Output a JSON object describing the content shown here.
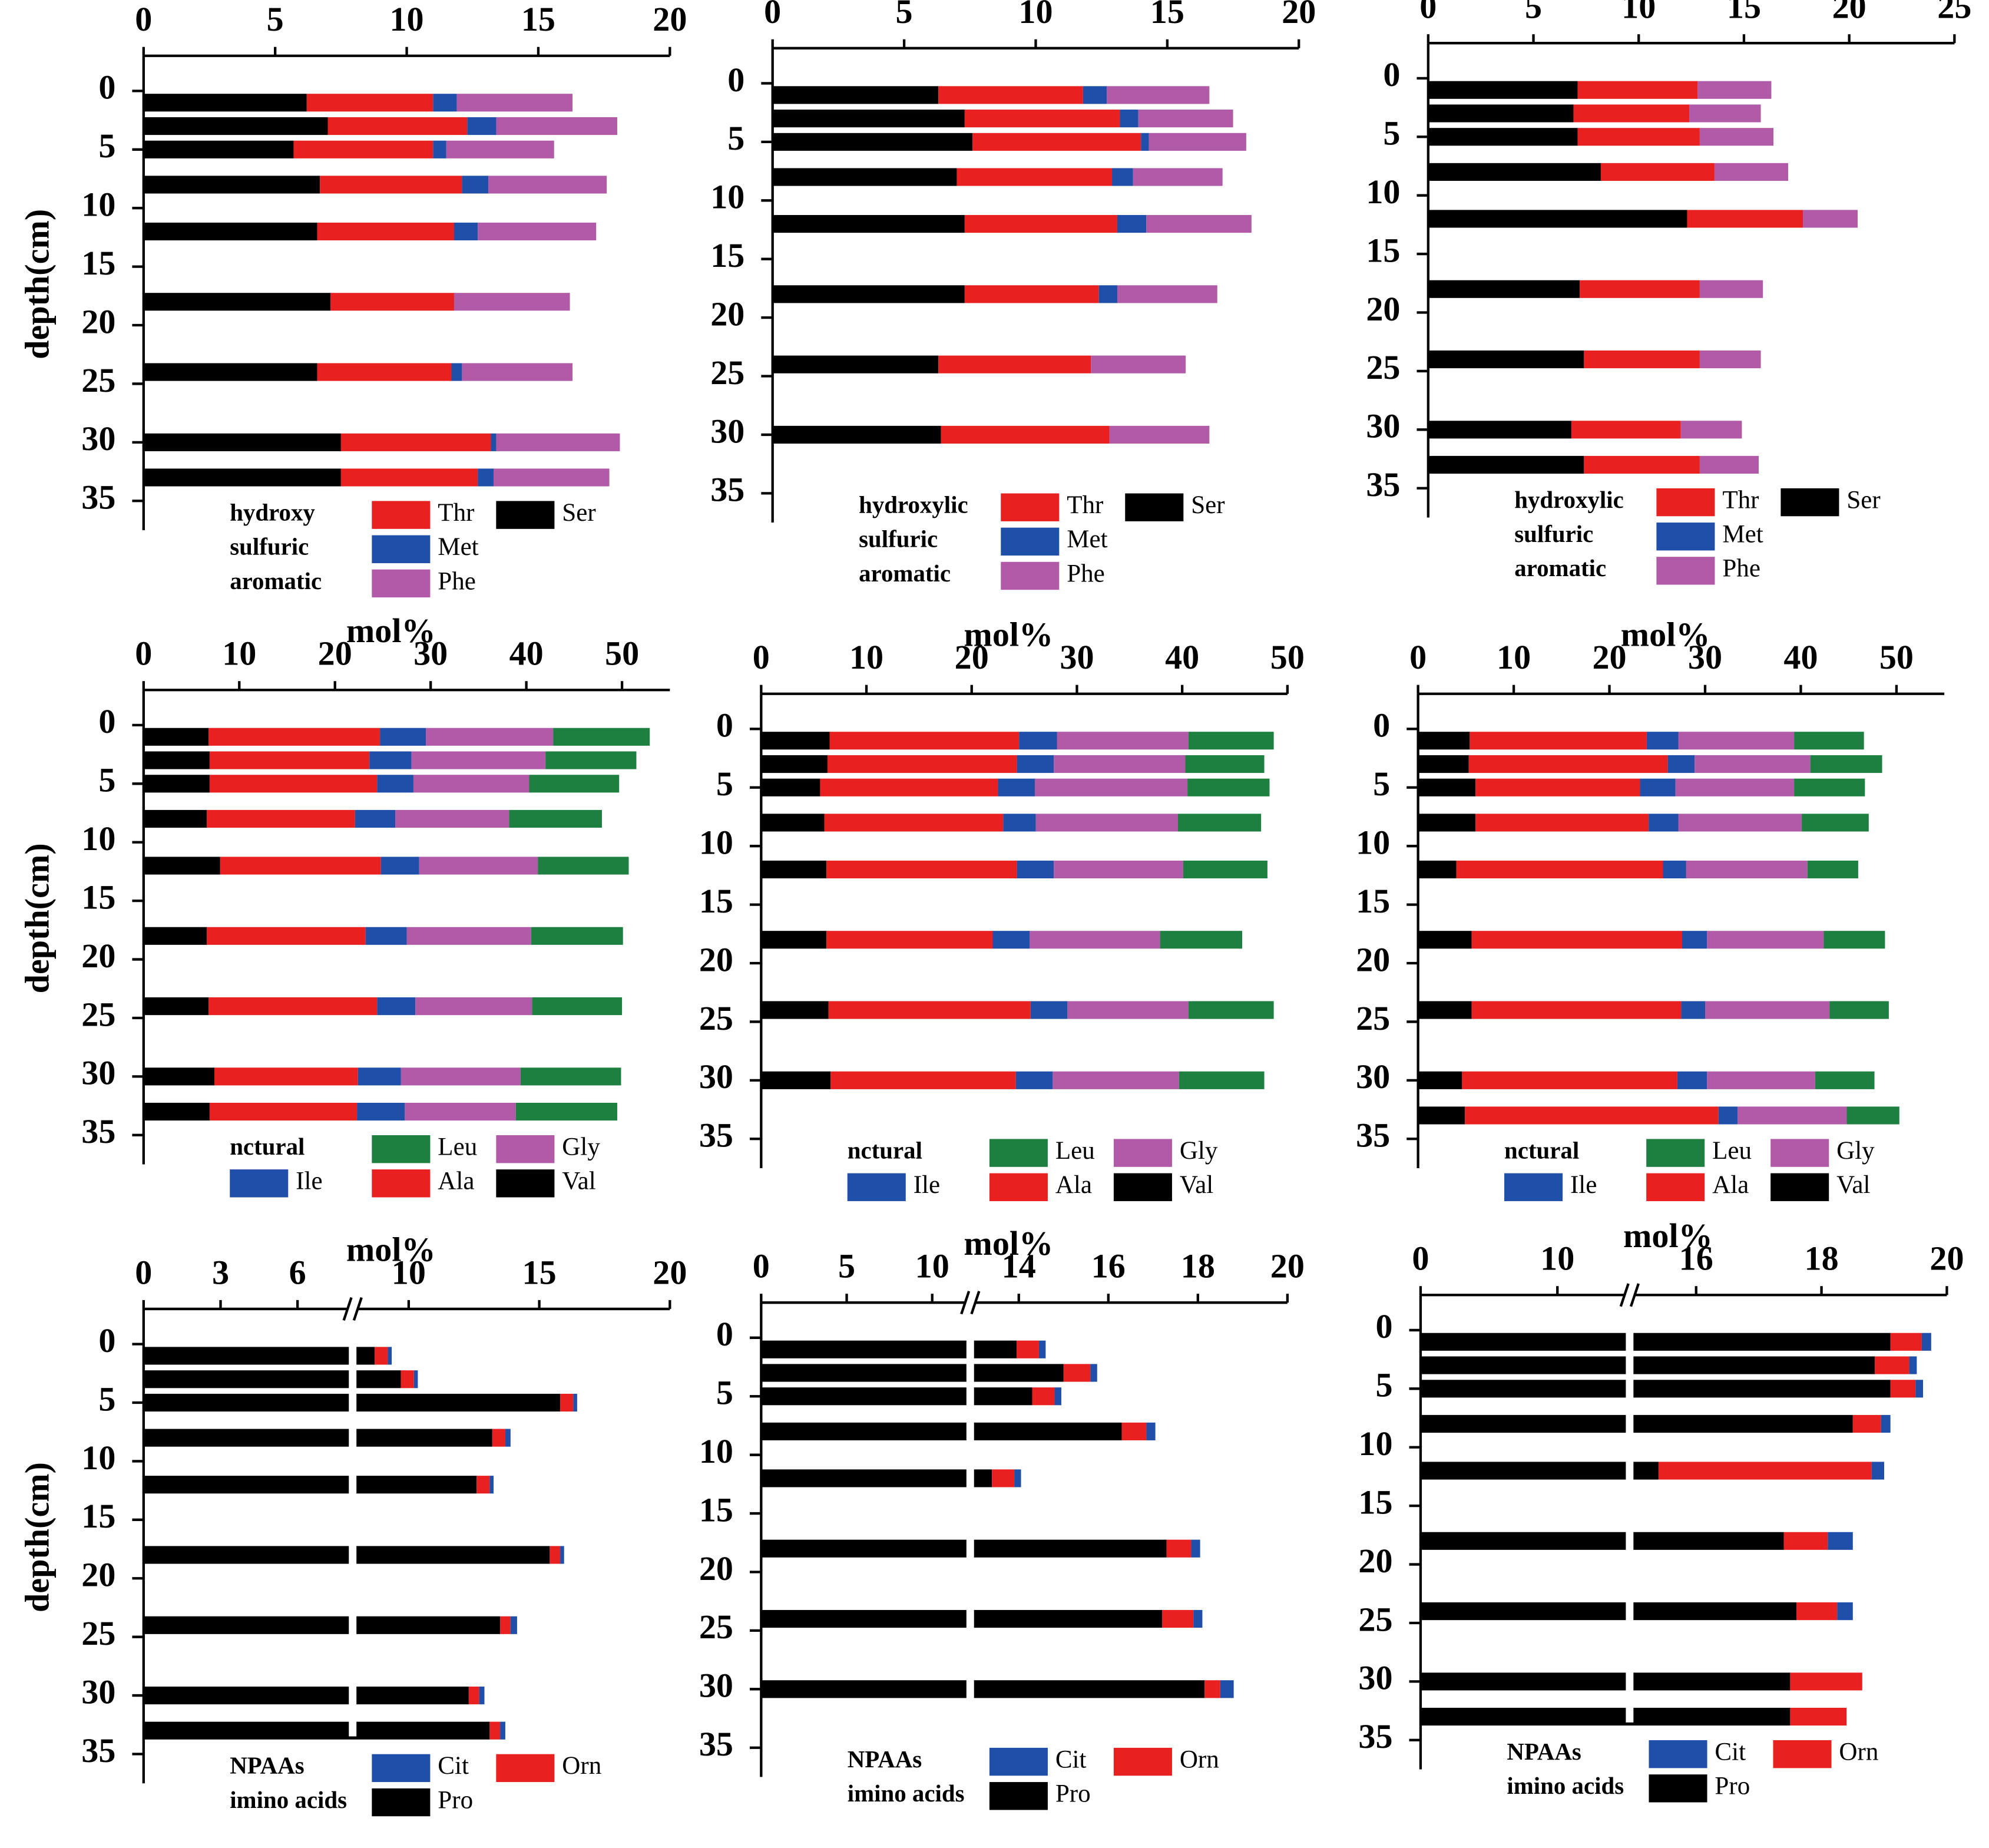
{
  "chart_data": [
    {
      "type": "bar",
      "stacked": true,
      "orientation": "horizontal",
      "xlim": [
        0,
        20
      ],
      "xticks": [
        0,
        5,
        10,
        15,
        20
      ],
      "ylim": [
        -3,
        37.5
      ],
      "yticks": [
        0,
        5,
        10,
        15,
        20,
        25,
        30,
        35
      ],
      "ylabel": "depth(cm)",
      "y": [
        1,
        3,
        5,
        8,
        12,
        18,
        24,
        30,
        33
      ],
      "legend_groups": [
        "hydroxy",
        "sulfuric",
        "aromatic"
      ],
      "series": [
        {
          "name": "Ser",
          "group": "hydroxy",
          "color": "#000000",
          "values": [
            6.2,
            7.0,
            5.7,
            6.7,
            6.6,
            7.1,
            6.6,
            7.5,
            7.5
          ]
        },
        {
          "name": "Thr",
          "group": "hydroxy",
          "color": "#e8201f",
          "values": [
            4.8,
            5.3,
            5.3,
            5.4,
            5.2,
            4.7,
            5.1,
            5.7,
            5.2
          ]
        },
        {
          "name": "Met",
          "group": "sulfuric",
          "color": "#1f4fa8",
          "values": [
            0.9,
            1.1,
            0.5,
            1.0,
            0.9,
            0,
            0.4,
            0.2,
            0.6
          ]
        },
        {
          "name": "Phe",
          "group": "aromatic",
          "color": "#b05aa8",
          "values": [
            4.4,
            4.6,
            4.1,
            4.5,
            4.5,
            4.4,
            4.2,
            4.7,
            4.4
          ]
        }
      ]
    },
    {
      "type": "bar",
      "stacked": true,
      "orientation": "horizontal",
      "xlim": [
        0,
        20
      ],
      "xticks": [
        0,
        5,
        10,
        15,
        20
      ],
      "ylim": [
        -3,
        37.5
      ],
      "yticks": [
        0,
        5,
        10,
        15,
        20,
        25,
        30,
        35
      ],
      "y": [
        1,
        3,
        5,
        8,
        12,
        18,
        24,
        30
      ],
      "legend_groups": [
        "hydroxylic",
        "sulfuric",
        "aromatic"
      ],
      "series": [
        {
          "name": "Ser",
          "group": "hydroxylic",
          "color": "#000000",
          "values": [
            6.3,
            7.3,
            7.6,
            7.0,
            7.3,
            7.3,
            6.3,
            6.4
          ]
        },
        {
          "name": "Thr",
          "group": "hydroxylic",
          "color": "#e8201f",
          "values": [
            5.5,
            5.9,
            6.4,
            5.9,
            5.8,
            5.1,
            5.8,
            6.4
          ]
        },
        {
          "name": "Met",
          "group": "sulfuric",
          "color": "#1f4fa8",
          "values": [
            0.9,
            0.7,
            0.3,
            0.8,
            1.1,
            0.7,
            0,
            0
          ]
        },
        {
          "name": "Phe",
          "group": "aromatic",
          "color": "#b05aa8",
          "values": [
            3.9,
            3.6,
            3.7,
            3.4,
            4.0,
            3.8,
            3.6,
            3.8
          ]
        }
      ]
    },
    {
      "type": "bar",
      "stacked": true,
      "orientation": "horizontal",
      "xlim": [
        0,
        25
      ],
      "xticks": [
        0,
        5,
        10,
        15,
        20,
        25
      ],
      "ylim": [
        -3,
        37.5
      ],
      "yticks": [
        0,
        5,
        10,
        15,
        20,
        25,
        30,
        35
      ],
      "y": [
        1,
        3,
        5,
        8,
        12,
        18,
        24,
        30,
        33
      ],
      "legend_groups": [
        "hydroxylic",
        "sulfuric",
        "aromatic"
      ],
      "series": [
        {
          "name": "Ser",
          "group": "hydroxylic",
          "color": "#000000",
          "values": [
            7.1,
            6.9,
            7.1,
            8.2,
            12.3,
            7.2,
            7.4,
            6.8,
            7.4
          ]
        },
        {
          "name": "Thr",
          "group": "hydroxylic",
          "color": "#e8201f",
          "values": [
            5.7,
            5.5,
            5.8,
            5.4,
            5.5,
            5.7,
            5.5,
            5.2,
            5.5
          ]
        },
        {
          "name": "Met",
          "group": "sulfuric",
          "color": "#1f4fa8",
          "values": [
            0,
            0,
            0,
            0,
            0,
            0,
            0,
            0,
            0
          ]
        },
        {
          "name": "Phe",
          "group": "aromatic",
          "color": "#b05aa8",
          "values": [
            3.5,
            3.4,
            3.5,
            3.5,
            2.6,
            3.0,
            2.9,
            2.9,
            2.8
          ]
        }
      ]
    },
    {
      "type": "bar",
      "stacked": true,
      "orientation": "horizontal",
      "xlabel": "mol%",
      "xlim": [
        0,
        55
      ],
      "xticks": [
        0,
        10,
        20,
        30,
        40,
        50
      ],
      "ylim": [
        -3,
        37.5
      ],
      "yticks": [
        0,
        5,
        10,
        15,
        20,
        25,
        30,
        35
      ],
      "ylabel": "depth(cm)",
      "y": [
        1,
        3,
        5,
        8,
        12,
        18,
        24,
        30,
        33
      ],
      "legend_groups": [
        "nctural"
      ],
      "series": [
        {
          "name": "Val",
          "group": "nctural",
          "color": "#000000",
          "values": [
            6.8,
            6.9,
            6.9,
            6.6,
            8.0,
            6.6,
            6.8,
            7.4,
            6.9
          ]
        },
        {
          "name": "Ala",
          "group": "nctural",
          "color": "#e8201f",
          "values": [
            17.9,
            16.7,
            17.5,
            15.5,
            16.8,
            16.6,
            17.6,
            15.0,
            15.4
          ]
        },
        {
          "name": "Ile",
          "group": "nctural",
          "color": "#1f4fa8",
          "values": [
            4.8,
            4.4,
            3.8,
            4.2,
            4.0,
            4.3,
            4.0,
            4.5,
            5.0
          ]
        },
        {
          "name": "Gly",
          "group": "nctural",
          "color": "#b05aa8",
          "values": [
            13.3,
            14.0,
            12.1,
            11.9,
            12.4,
            13.0,
            12.2,
            12.5,
            11.6
          ]
        },
        {
          "name": "Leu",
          "group": "nctural",
          "color": "#1e8040",
          "values": [
            10.1,
            9.5,
            9.4,
            9.7,
            9.5,
            9.6,
            9.4,
            10.5,
            10.6
          ]
        }
      ]
    },
    {
      "type": "bar",
      "stacked": true,
      "orientation": "horizontal",
      "xlabel": "mol%",
      "xlim": [
        0,
        50
      ],
      "xticks": [
        0,
        10,
        20,
        30,
        40,
        50
      ],
      "ylim": [
        -3,
        37.5
      ],
      "yticks": [
        0,
        5,
        10,
        15,
        20,
        25,
        30,
        35
      ],
      "y": [
        1,
        3,
        5,
        8,
        12,
        18,
        24,
        30
      ],
      "legend_groups": [
        "nctural"
      ],
      "series": [
        {
          "name": "Val",
          "group": "nctural",
          "color": "#000000",
          "values": [
            6.5,
            6.3,
            5.6,
            6.0,
            6.2,
            6.2,
            6.4,
            6.6
          ]
        },
        {
          "name": "Ala",
          "group": "nctural",
          "color": "#e8201f",
          "values": [
            18.0,
            18.0,
            16.9,
            17.0,
            18.1,
            15.8,
            19.2,
            17.6
          ]
        },
        {
          "name": "Ile",
          "group": "nctural",
          "color": "#1f4fa8",
          "values": [
            3.6,
            3.5,
            3.5,
            3.1,
            3.5,
            3.5,
            3.5,
            3.5
          ]
        },
        {
          "name": "Gly",
          "group": "nctural",
          "color": "#b05aa8",
          "values": [
            12.5,
            12.5,
            14.5,
            13.5,
            12.3,
            12.4,
            11.5,
            12.0
          ]
        },
        {
          "name": "Leu",
          "group": "nctural",
          "color": "#1e8040",
          "values": [
            8.1,
            7.5,
            7.8,
            7.9,
            8.0,
            7.8,
            8.1,
            8.1
          ]
        }
      ]
    },
    {
      "type": "bar",
      "stacked": true,
      "orientation": "horizontal",
      "xlabel": "mol%",
      "xlim": [
        0,
        55
      ],
      "xticks": [
        0,
        10,
        20,
        30,
        40,
        50
      ],
      "ylim": [
        -3,
        37.5
      ],
      "yticks": [
        0,
        5,
        10,
        15,
        20,
        25,
        30,
        35
      ],
      "y": [
        1,
        3,
        5,
        8,
        12,
        18,
        24,
        30,
        33
      ],
      "legend_groups": [
        "nctural"
      ],
      "series": [
        {
          "name": "Val",
          "group": "nctural",
          "color": "#000000",
          "values": [
            5.4,
            5.3,
            6.0,
            6.0,
            4.0,
            5.6,
            5.6,
            4.6,
            4.9
          ]
        },
        {
          "name": "Ala",
          "group": "nctural",
          "color": "#e8201f",
          "values": [
            18.5,
            20.8,
            17.2,
            18.1,
            21.6,
            22.0,
            21.9,
            22.5,
            26.5
          ]
        },
        {
          "name": "Ile",
          "group": "nctural",
          "color": "#1f4fa8",
          "values": [
            3.3,
            2.8,
            3.7,
            3.1,
            2.4,
            2.6,
            2.5,
            3.1,
            2.0
          ]
        },
        {
          "name": "Gly",
          "group": "nctural",
          "color": "#b05aa8",
          "values": [
            12.1,
            12.1,
            12.4,
            12.9,
            12.7,
            12.2,
            13.0,
            11.3,
            11.4
          ]
        },
        {
          "name": "Leu",
          "group": "nctural",
          "color": "#1e8040",
          "values": [
            7.3,
            7.5,
            7.4,
            7.0,
            5.3,
            6.4,
            6.2,
            6.2,
            5.5
          ]
        }
      ]
    },
    {
      "type": "bar",
      "stacked": true,
      "orientation": "horizontal",
      "xlabel": "mol%",
      "xlim": [
        0,
        20
      ],
      "xbreak": [
        8,
        8
      ],
      "xticks": [
        0,
        3,
        6,
        10,
        15,
        20
      ],
      "ylim": [
        -3,
        37.5
      ],
      "yticks": [
        0,
        5,
        10,
        15,
        20,
        25,
        30,
        35
      ],
      "ylabel": "depth(cm)",
      "y": [
        1,
        3,
        5,
        8,
        12,
        18,
        24,
        30,
        33
      ],
      "legend_groups": [
        "NPAAs",
        "imino acids"
      ],
      "series": [
        {
          "name": "Pro",
          "group": "imino acids",
          "color": "#000000",
          "values": [
            8.7,
            9.7,
            15.8,
            13.2,
            12.6,
            15.4,
            13.5,
            12.3,
            13.1
          ]
        },
        {
          "name": "Orn",
          "group": "NPAAs",
          "color": "#e8201f",
          "values": [
            0.5,
            0.5,
            0.5,
            0.5,
            0.5,
            0.4,
            0.4,
            0.4,
            0.4
          ]
        },
        {
          "name": "Cit",
          "group": "NPAAs",
          "color": "#1f4fa8",
          "values": [
            0.15,
            0.15,
            0.15,
            0.2,
            0.15,
            0.15,
            0.25,
            0.2,
            0.2
          ]
        }
      ]
    },
    {
      "type": "bar",
      "stacked": true,
      "orientation": "horizontal",
      "xlabel": "mol%",
      "xlim": [
        0,
        20
      ],
      "xbreak": [
        12,
        13
      ],
      "xticks": [
        0,
        5,
        10,
        14,
        16,
        18,
        20
      ],
      "ylim": [
        -3,
        37.5
      ],
      "yticks": [
        0,
        5,
        10,
        15,
        20,
        25,
        30,
        35
      ],
      "y": [
        1,
        3,
        5,
        8,
        12,
        18,
        24,
        30
      ],
      "legend_groups": [
        "NPAAs",
        "imino acids"
      ],
      "series": [
        {
          "name": "Pro",
          "group": "imino acids",
          "color": "#000000",
          "values": [
            13.95,
            15.0,
            14.3,
            16.3,
            13.4,
            17.3,
            17.2,
            18.15
          ]
        },
        {
          "name": "Orn",
          "group": "NPAAs",
          "color": "#e8201f",
          "values": [
            0.5,
            0.6,
            0.5,
            0.55,
            0.5,
            0.55,
            0.7,
            0.35
          ]
        },
        {
          "name": "Cit",
          "group": "NPAAs",
          "color": "#1f4fa8",
          "values": [
            0.15,
            0.15,
            0.15,
            0.2,
            0.15,
            0.2,
            0.2,
            0.3
          ]
        }
      ]
    },
    {
      "type": "bar",
      "stacked": true,
      "orientation": "horizontal",
      "xlabel": "mol%",
      "xlim": [
        0,
        20
      ],
      "xbreak": [
        15,
        15
      ],
      "xticks": [
        0,
        10,
        16,
        18,
        20
      ],
      "ylim": [
        -3,
        37.5
      ],
      "yticks": [
        0,
        5,
        10,
        15,
        20,
        25,
        30,
        35
      ],
      "y": [
        1,
        3,
        5,
        8,
        12,
        18,
        24,
        30,
        33
      ],
      "legend_groups": [
        "NPAAs",
        "imino acids"
      ],
      "series": [
        {
          "name": "Pro",
          "group": "imino acids",
          "color": "#000000",
          "values": [
            19.1,
            18.85,
            19.1,
            18.5,
            15.4,
            17.4,
            17.6,
            17.5,
            17.5
          ]
        },
        {
          "name": "Orn",
          "group": "NPAAs",
          "color": "#e8201f",
          "values": [
            0.5,
            0.55,
            0.4,
            0.45,
            3.4,
            0.7,
            0.65,
            1.15,
            0.9
          ]
        },
        {
          "name": "Cit",
          "group": "NPAAs",
          "color": "#1f4fa8",
          "values": [
            0.15,
            0.12,
            0.12,
            0.15,
            0.2,
            0.4,
            0.25,
            0,
            0
          ]
        }
      ]
    }
  ]
}
